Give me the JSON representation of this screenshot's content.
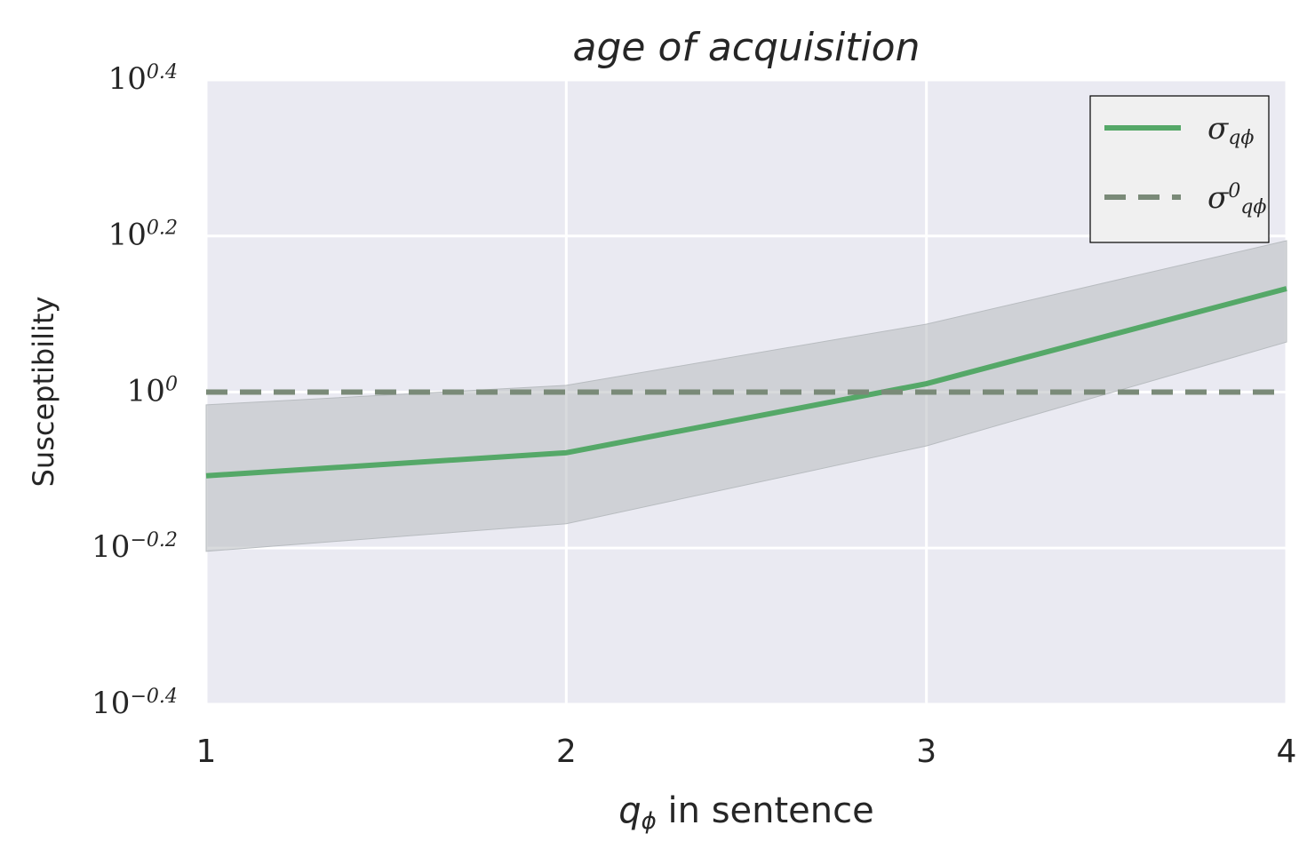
{
  "chart_data": {
    "type": "line",
    "title": "age of acquisition",
    "xlabel": "q_ϕ in sentence",
    "ylabel": "Susceptibility",
    "x": [
      1,
      2,
      3,
      4
    ],
    "series": [
      {
        "name": "σ_qϕ",
        "color": "#55a868",
        "values": [
          0.781,
          0.836,
          1.025,
          1.357
        ],
        "lower": [
          0.625,
          0.678,
          0.853,
          1.159
        ],
        "upper": [
          0.963,
          1.02,
          1.222,
          1.563
        ],
        "band_color": "#b8bcc0",
        "style": "solid"
      },
      {
        "name": "σ^0_qϕ",
        "color": "#7a8a78",
        "values": [
          1,
          1,
          1,
          1
        ],
        "style": "dashed"
      }
    ],
    "xlim": [
      1,
      4
    ],
    "xticks": [
      1,
      2,
      3,
      4
    ],
    "ylim": [
      0.398,
      2.512
    ],
    "yscale": "log",
    "yticks": [
      {
        "value": 0.398,
        "label": "10^−0.4"
      },
      {
        "value": 0.631,
        "label": "10^−0.2"
      },
      {
        "value": 1,
        "label": "10^0"
      },
      {
        "value": 1.585,
        "label": "10^0.2"
      },
      {
        "value": 2.512,
        "label": "10^0.4"
      }
    ],
    "grid": true,
    "legend": "upper right"
  }
}
